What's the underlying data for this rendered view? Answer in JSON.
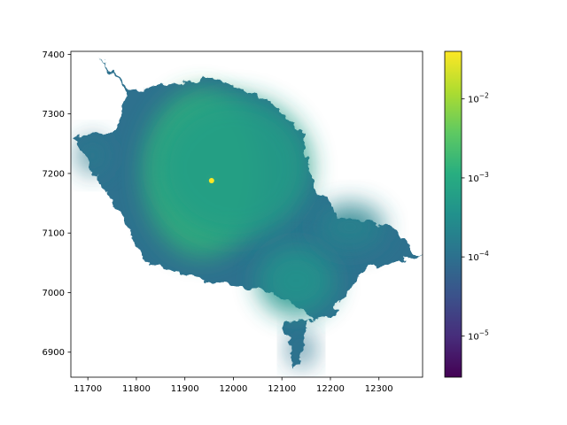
{
  "chart_data": {
    "type": "heatmap",
    "title": "",
    "xlabel": "",
    "ylabel": "",
    "xlim": [
      11665,
      12390
    ],
    "ylim": [
      6858,
      7405
    ],
    "x_ticks": [
      11700,
      11800,
      11900,
      12000,
      12100,
      12200,
      12300
    ],
    "y_ticks": [
      6900,
      7000,
      7100,
      7200,
      7300,
      7400
    ],
    "x_tick_labels": [
      "11700",
      "11800",
      "11900",
      "12000",
      "12100",
      "12200",
      "12300"
    ],
    "y_tick_labels": [
      "6900",
      "7000",
      "7100",
      "7200",
      "7300",
      "7400"
    ],
    "colormap": "viridis",
    "color_scale": "log",
    "clim": [
      3e-06,
      0.04
    ],
    "colorbar_ticks": [
      {
        "value": 1e-05,
        "base": "10",
        "exp": "−5"
      },
      {
        "value": 0.0001,
        "base": "10",
        "exp": "−4"
      },
      {
        "value": 0.001,
        "base": "10",
        "exp": "−3"
      },
      {
        "value": 0.01,
        "base": "10",
        "exp": "−2"
      }
    ],
    "peak": {
      "x": 11955,
      "y": 7188,
      "value": 0.04
    },
    "background_value": 0.0001,
    "blobs": [
      {
        "x": 11955,
        "y": 7188,
        "rx": 8,
        "ry": 8,
        "level": 0.04
      },
      {
        "x": 11935,
        "y": 7200,
        "rx": 120,
        "ry": 140,
        "level": 0.0015
      },
      {
        "x": 12000,
        "y": 7210,
        "rx": 160,
        "ry": 120,
        "level": 0.0006
      },
      {
        "x": 12130,
        "y": 7020,
        "rx": 80,
        "ry": 60,
        "level": 0.0004
      },
      {
        "x": 12240,
        "y": 7110,
        "rx": 70,
        "ry": 40,
        "level": 0.0002
      },
      {
        "x": 11710,
        "y": 7230,
        "rx": 30,
        "ry": 30,
        "level": 0.00015
      },
      {
        "x": 12140,
        "y": 6905,
        "rx": 25,
        "ry": 30,
        "level": 0.00012
      }
    ]
  }
}
